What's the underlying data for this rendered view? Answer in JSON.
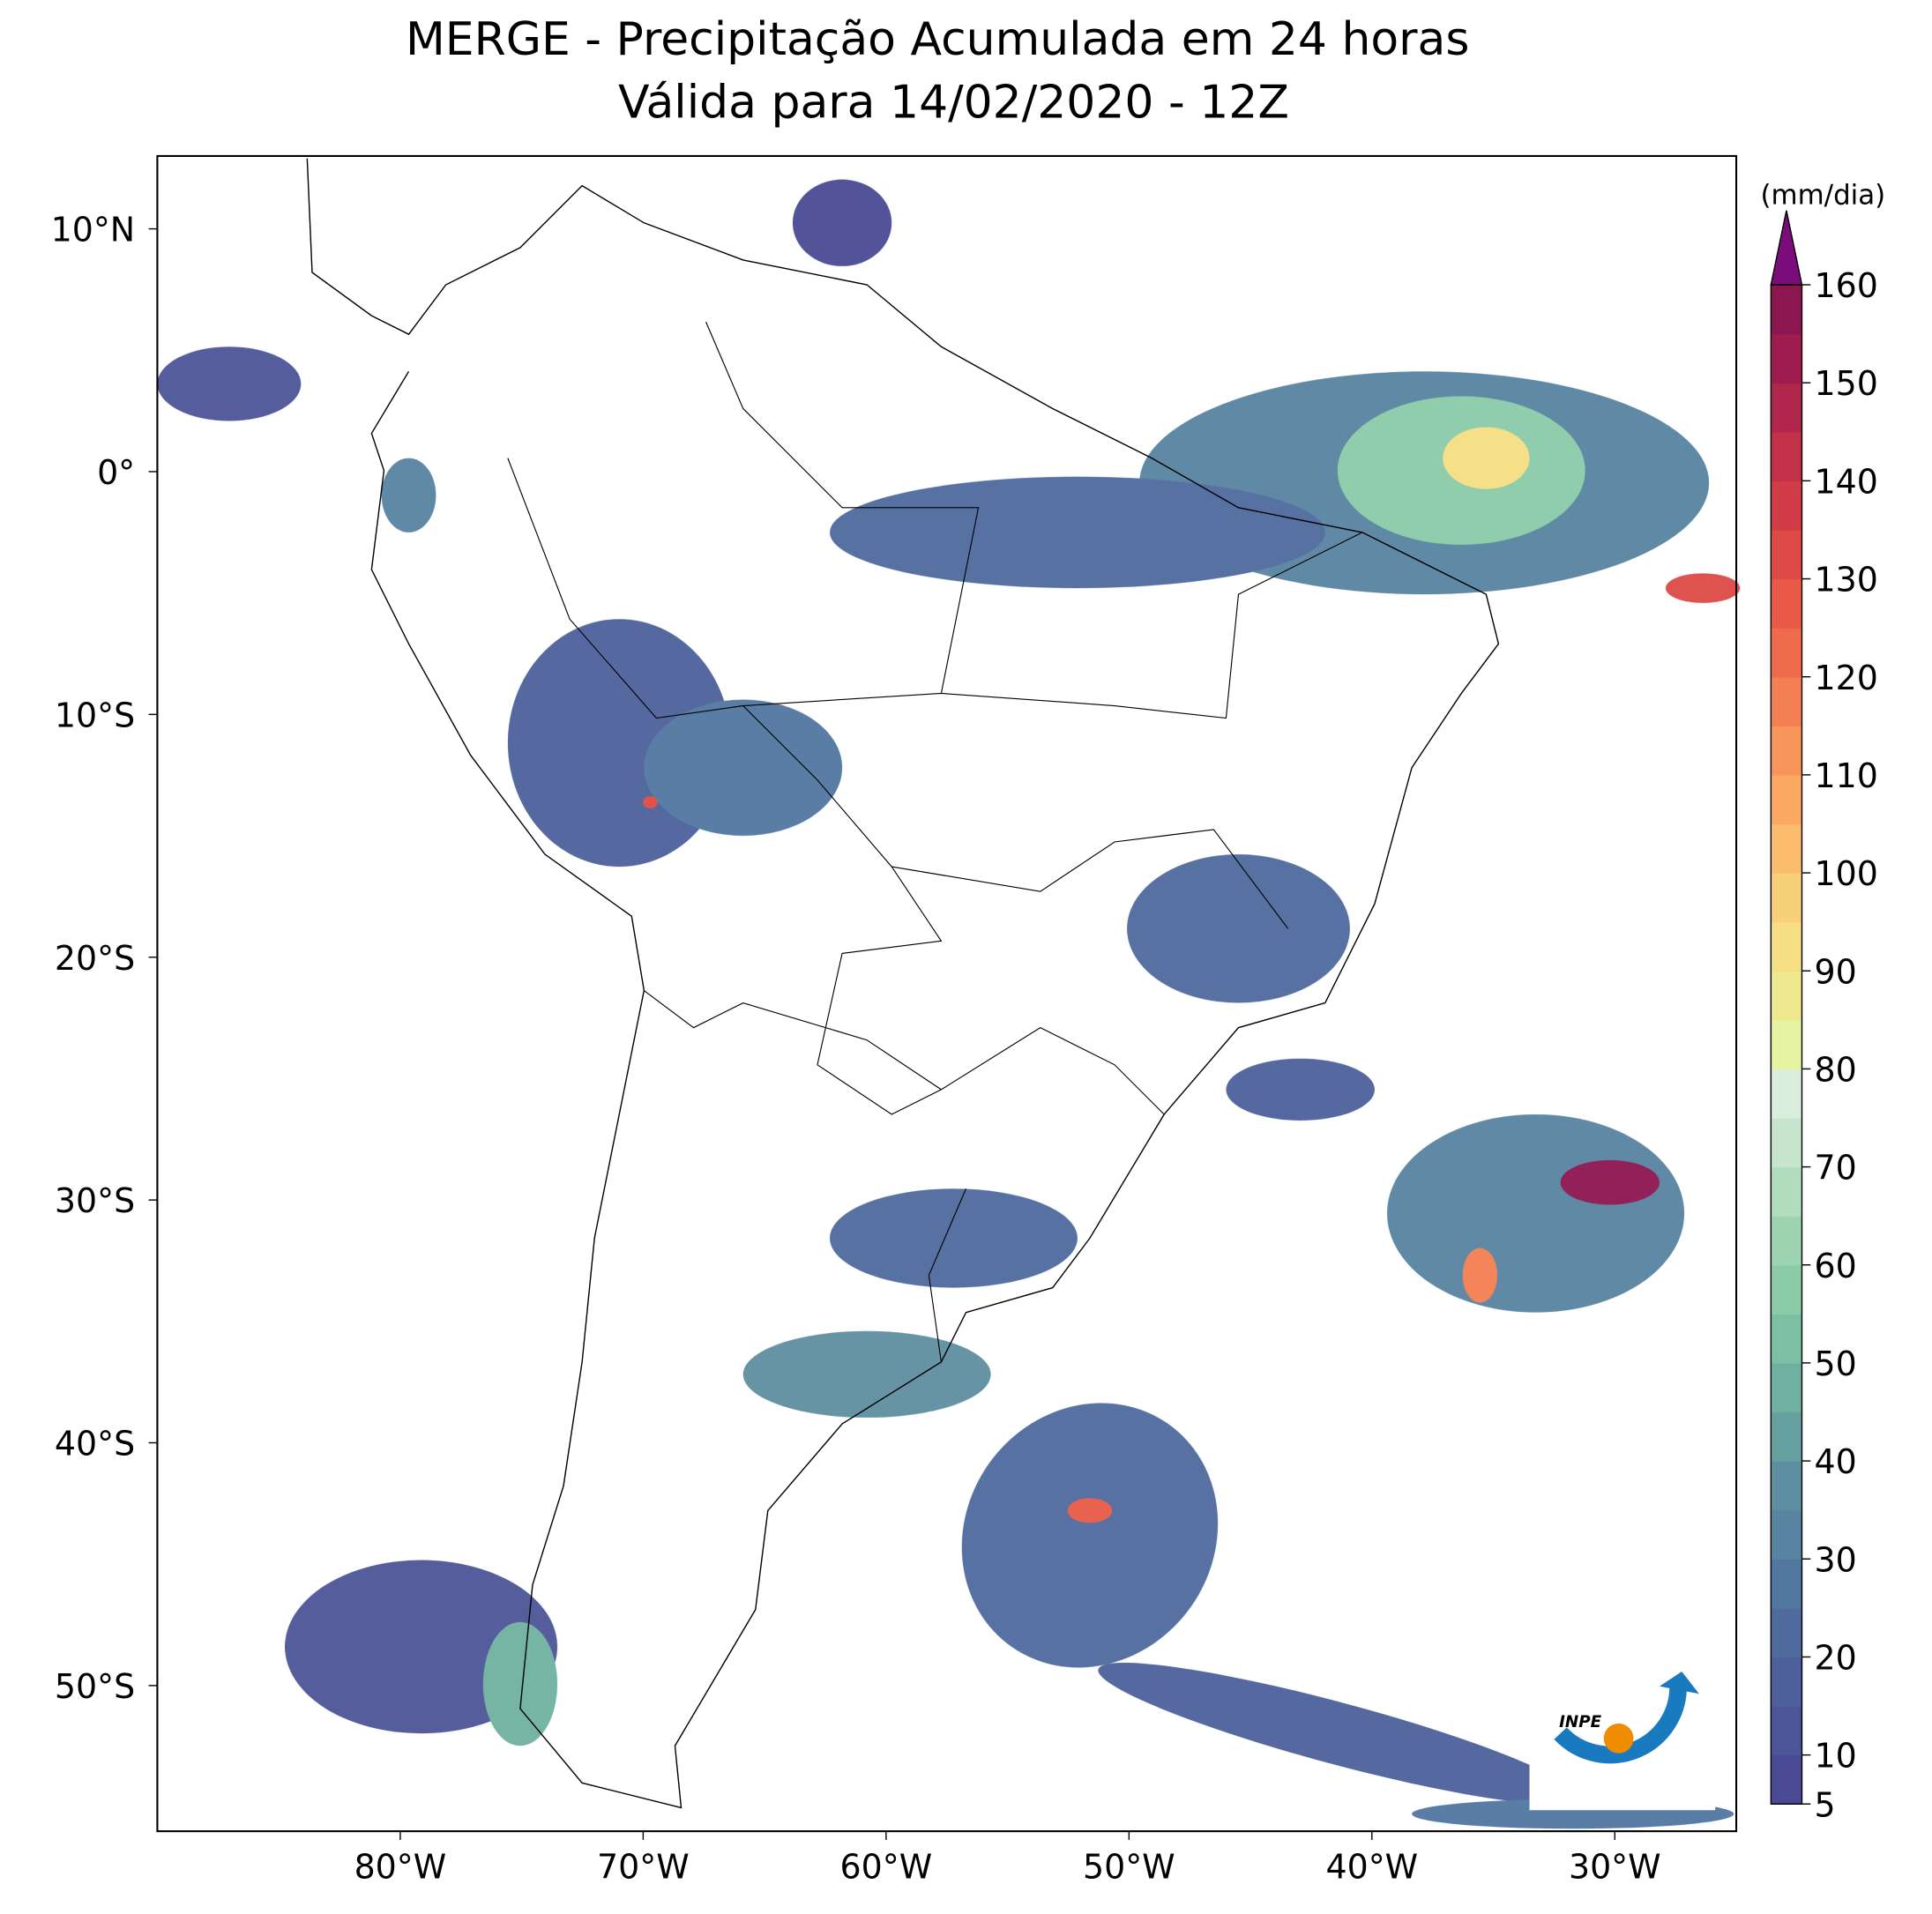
{
  "title": [
    "MERGE - Precipitação Acumulada em 24 horas",
    "Válida para 14/02/2020 - 12Z"
  ],
  "map": {
    "xlim": [
      -90,
      -25
    ],
    "ylim": [
      -56,
      13
    ],
    "xticks": [
      {
        "value": -80,
        "label": "80°W"
      },
      {
        "value": -70,
        "label": "70°W"
      },
      {
        "value": -60,
        "label": "60°W"
      },
      {
        "value": -50,
        "label": "50°W"
      },
      {
        "value": -40,
        "label": "40°W"
      },
      {
        "value": -30,
        "label": "30°W"
      }
    ],
    "yticks": [
      {
        "value": 10,
        "label": "10°N"
      },
      {
        "value": 0,
        "label": "0°"
      },
      {
        "value": -10,
        "label": "10°S"
      },
      {
        "value": -20,
        "label": "20°S"
      },
      {
        "value": -30,
        "label": "30°S"
      },
      {
        "value": -40,
        "label": "40°S"
      },
      {
        "value": -50,
        "label": "50°S"
      }
    ]
  },
  "colorbar": {
    "label": "(mm/dia)",
    "ylim": [
      5,
      160
    ],
    "ticks": [
      5,
      10,
      20,
      30,
      40,
      50,
      60,
      70,
      80,
      90,
      100,
      110,
      120,
      130,
      140,
      150,
      160
    ],
    "colors": [
      "#4a4a94",
      "#4c5597",
      "#4d609b",
      "#4f6b9e",
      "#5277a1",
      "#5883a1",
      "#5e8fa1",
      "#66a0a0",
      "#6fb0a0",
      "#7bbfa4",
      "#8bcba8",
      "#9dd3b0",
      "#b1dcbd",
      "#c6e5cc",
      "#d9eedc",
      "#e6f3a0",
      "#eee98e",
      "#f5de83",
      "#f9d07a",
      "#fbbd6d",
      "#faa862",
      "#f8955a",
      "#f47f52",
      "#ef6b4c",
      "#e85a47",
      "#de4a46",
      "#d13c48",
      "#c2304a",
      "#b0264c",
      "#9e1d4e",
      "#8c1650"
    ],
    "extend_color": "#7a0d7a"
  },
  "logo": "INPE"
}
